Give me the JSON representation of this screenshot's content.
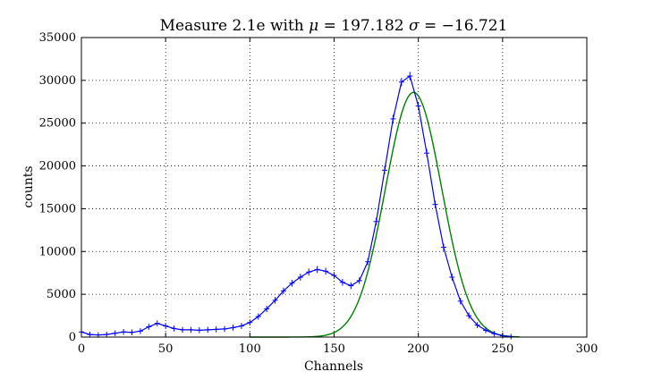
{
  "chart_data": {
    "type": "line",
    "title_prefix": "Measure 2.1e with ",
    "title_mu_symbol": "μ",
    "title_mu_value": " = 197.182 ",
    "title_sigma_symbol": "σ",
    "title_sigma_value": " = −16.721",
    "xlabel": "Channels",
    "ylabel": "counts",
    "xlim": [
      0,
      300
    ],
    "ylim": [
      0,
      35000
    ],
    "xticks": [
      0,
      50,
      100,
      150,
      200,
      250,
      300
    ],
    "yticks": [
      0,
      5000,
      10000,
      15000,
      20000,
      25000,
      30000,
      35000
    ],
    "grid": true,
    "series": [
      {
        "role": "data_with_error_bars",
        "color": "#0000ff",
        "x": [
          0,
          5,
          10,
          15,
          20,
          25,
          30,
          35,
          40,
          45,
          50,
          55,
          60,
          65,
          70,
          75,
          80,
          85,
          90,
          95,
          100,
          105,
          110,
          115,
          120,
          125,
          130,
          135,
          140,
          145,
          150,
          155,
          160,
          165,
          170,
          175,
          180,
          185,
          190,
          195,
          200,
          205,
          210,
          215,
          220,
          225,
          230,
          235,
          240,
          245,
          250,
          255
        ],
        "y": [
          600,
          300,
          250,
          300,
          450,
          600,
          550,
          700,
          1200,
          1600,
          1300,
          1000,
          850,
          850,
          800,
          850,
          900,
          950,
          1100,
          1300,
          1700,
          2400,
          3300,
          4300,
          5400,
          6300,
          7000,
          7600,
          7900,
          7700,
          7200,
          6400,
          6000,
          6600,
          8800,
          13500,
          19500,
          25500,
          29800,
          30500,
          27000,
          21500,
          15500,
          10500,
          7000,
          4200,
          2500,
          1400,
          800,
          400,
          150,
          50
        ]
      },
      {
        "role": "gaussian_fit",
        "color": "#008000",
        "mu": 197.182,
        "sigma": 16.721,
        "amplitude": 28600,
        "x_range": [
          100,
          260
        ]
      }
    ]
  }
}
